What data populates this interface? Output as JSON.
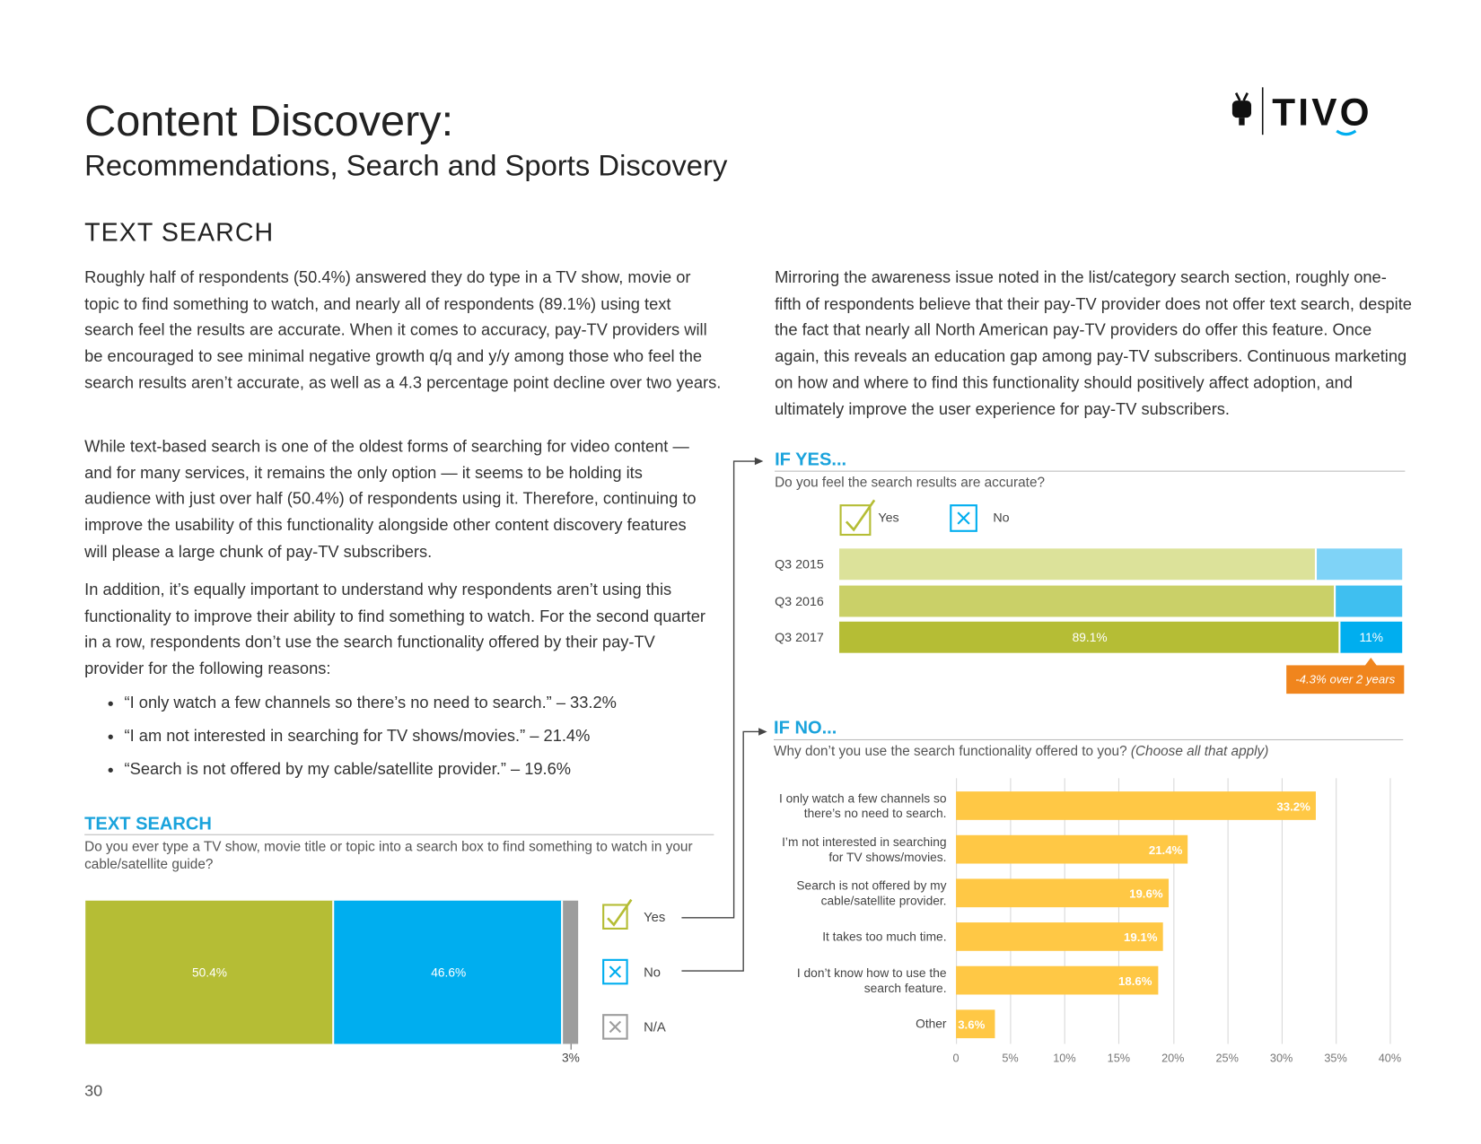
{
  "header": {
    "title": "Content Discovery:",
    "subtitle": "Recommendations, Search and Sports Discovery",
    "logo": "TIVO"
  },
  "section": "TEXT SEARCH",
  "left_paragraphs": [
    "Roughly half of respondents (50.4%) answered they do type in a TV show, movie or topic to find something to watch, and nearly all of respondents (89.1%) using text search feel the results are accurate. When it comes to accuracy, pay-TV providers will be encouraged to see minimal negative growth q/q and y/y among those who feel the search results aren’t accurate, as well as a 4.3 percentage point decline over two years.",
    "While text-based search is one of the oldest forms of searching for video content — and for many services, it remains the only option — it seems to be holding its audience with just over half (50.4%) of respondents using it. Therefore, continuing to improve the usability of this functionality alongside other content discovery features will please a large chunk of pay-TV subscribers.",
    "In addition, it’s equally important to understand why respondents aren’t using this functionality to improve their ability to find something to watch. For the second quarter in a row, respondents don’t use the search functionality offered by their pay-TV provider for the following reasons:"
  ],
  "bullets": [
    "“I only watch a few channels so there’s no need to search.” – 33.2%",
    "“I am not interested in searching for TV shows/movies.” – 21.4%",
    "“Search is not offered by my cable/satellite provider.” – 19.6%"
  ],
  "right_paragraph": "Mirroring the awareness issue noted in the list/category search section, roughly one-fifth of respondents believe that their pay-TV provider does not offer text search, despite the fact that nearly all North American pay-TV providers do offer this feature. Once again, this reveals an education gap among pay-TV subscribers. Continuous marketing on how and where to find this functionality should positively affect adoption, and ultimately improve the user experience for pay-TV subscribers.",
  "page_number": "30",
  "chart_data": [
    {
      "type": "bar",
      "stacked": true,
      "title": "TEXT SEARCH",
      "subtitle": "Do you ever type a TV show, movie title or topic into a search box to find something to watch in your cable/satellite guide?",
      "series": [
        {
          "name": "Yes",
          "color": "#b5bd35",
          "values": [
            50.4
          ],
          "value_labels": [
            "50.4%"
          ]
        },
        {
          "name": "No",
          "color": "#00aeef",
          "values": [
            46.6
          ],
          "value_labels": [
            "46.6%"
          ]
        },
        {
          "name": "N/A",
          "color": "#9d9d9d",
          "values": [
            3
          ],
          "value_labels": [
            "3%"
          ]
        }
      ]
    },
    {
      "type": "bar",
      "stacked": true,
      "title": "IF YES...",
      "subtitle": "Do you feel the search results are accurate?",
      "categories": [
        "Q3 2015",
        "Q3 2016",
        "Q3 2017"
      ],
      "series": [
        {
          "name": "Yes",
          "color": "#b5bd35",
          "colors": [
            "#dce29a",
            "#cad068",
            "#b5bd35"
          ],
          "values": [
            84.8,
            88.2,
            89.1
          ],
          "value_labels": [
            null,
            null,
            "89.1%"
          ]
        },
        {
          "name": "No",
          "color": "#00aeef",
          "colors": [
            "#7fd3f7",
            "#3fbff0",
            "#00aeef"
          ],
          "values": [
            15.2,
            11.8,
            11
          ],
          "value_labels": [
            null,
            null,
            "11%"
          ]
        }
      ],
      "annotation": "-4.3% over 2 years"
    },
    {
      "type": "bar",
      "title": "IF NO...",
      "subtitle": "Why don’t you use the search functionality offered to you?",
      "subtitle_note": "(Choose all that apply)",
      "categories": [
        "I only watch a few channels so\nthere’s no need to search.",
        "I’m not interested in searching\nfor TV shows/movies.",
        "Search is not offered by my\ncable/satellite provider.",
        "It takes too much time.",
        "I don’t know how to use the\nsearch feature.",
        "Other"
      ],
      "values": [
        33.2,
        21.4,
        19.6,
        19.1,
        18.6,
        3.6
      ],
      "value_labels": [
        "33.2%",
        "21.4%",
        "19.6%",
        "19.1%",
        "18.6%",
        "3.6%"
      ],
      "color": "#ffc845",
      "xlim": [
        0,
        40
      ],
      "xticks": [
        0,
        {
          "value": 5,
          "label": "5%"
        },
        {
          "value": 10,
          "label": "10%"
        },
        {
          "value": 15,
          "label": "15%"
        },
        {
          "value": 20,
          "label": "20%"
        },
        {
          "value": 25,
          "label": "25%"
        },
        {
          "value": 30,
          "label": "30%"
        },
        {
          "value": 35,
          "label": "35%"
        },
        {
          "value": 40,
          "label": "40%"
        }
      ],
      "grid": true
    }
  ]
}
